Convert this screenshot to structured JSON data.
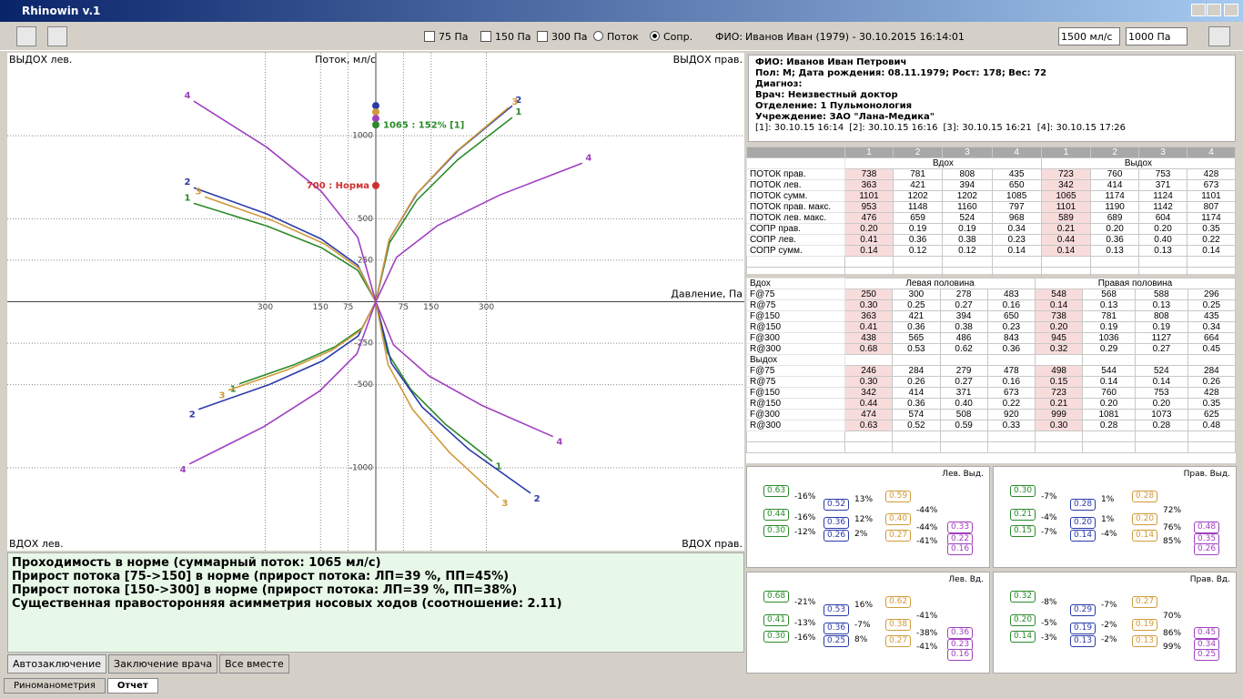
{
  "window": {
    "title": "Rhinowin v.1"
  },
  "toolbar": {
    "checkboxes": [
      "75 Па",
      "150 Па",
      "300 Па"
    ],
    "radios": [
      "Поток",
      "Сопр."
    ],
    "patient_label": "ФИО:",
    "patient": "Иванов Иван (1979) - 30.10.2015 16:14:01",
    "flow_range": "1500 мл/с",
    "pressure_range": "1000 Па"
  },
  "chart_data": {
    "type": "line",
    "x_label": "Давление, Па",
    "y_label": "Поток, мл/с",
    "quadrant_labels": [
      "ВЫДОХ лев.",
      "ВЫДОХ прав.",
      "ВДОХ лев.",
      "ВДОХ прав."
    ],
    "xlim": [
      -1000,
      1000
    ],
    "ylim": [
      -1500,
      1500
    ],
    "xticks": [
      {
        "value": -300,
        "label": "300"
      },
      {
        "value": -150,
        "label": "150"
      },
      {
        "value": -75,
        "label": "75"
      },
      75,
      150,
      300
    ],
    "yticks": [
      1000,
      500,
      250,
      -250,
      -500,
      -1000
    ],
    "grid": true,
    "series": [
      {
        "name": "1",
        "color": "#2a8a2a",
        "x": [
          0,
          37,
          111,
          222,
          370,
          null,
          0,
          -49,
          -148,
          -296,
          -494,
          null,
          0,
          -37,
          -111,
          -222,
          -370,
          null,
          0,
          32,
          95,
          190,
          316
        ],
        "y": [
          0,
          355,
          611,
          855,
          1110,
          null,
          0,
          190,
          326,
          457,
          593,
          null,
          0,
          -158,
          -272,
          -380,
          -494,
          null,
          0,
          -308,
          -529,
          -740,
          -961
        ]
      },
      {
        "name": "2",
        "color": "#2a3aa8",
        "x": [
          0,
          37,
          111,
          222,
          370,
          null,
          0,
          -49,
          -148,
          -296,
          -494,
          null,
          0,
          -48,
          -144,
          -289,
          -481,
          null,
          0,
          42,
          126,
          252,
          420
        ],
        "y": [
          0,
          378,
          650,
          909,
          1181,
          null,
          0,
          220,
          378,
          529,
          687,
          null,
          0,
          -207,
          -356,
          -499,
          -648,
          null,
          0,
          -369,
          -635,
          -889,
          -1154
        ]
      },
      {
        "name": "3",
        "color": "#d09a3a",
        "x": [
          0,
          36,
          108,
          216,
          360,
          null,
          0,
          -46,
          -139,
          -278,
          -464,
          null,
          0,
          -40,
          -120,
          -240,
          -400,
          null,
          0,
          33,
          100,
          200,
          333
        ],
        "y": [
          0,
          374,
          644,
          901,
          1170,
          null,
          0,
          202,
          348,
          487,
          632,
          null,
          0,
          -171,
          -293,
          -410,
          -533,
          null,
          0,
          -378,
          -650,
          -909,
          -1181
        ]
      },
      {
        "name": "4",
        "color": "#a040c0",
        "x": [
          0,
          56,
          168,
          336,
          560,
          null,
          0,
          -49,
          -148,
          -296,
          -494,
          null,
          0,
          -51,
          -152,
          -304,
          -506,
          null,
          0,
          48,
          144,
          289,
          481
        ],
        "y": [
          0,
          267,
          459,
          643,
          835,
          null,
          0,
          387,
          665,
          931,
          1209,
          null,
          0,
          -313,
          -538,
          -753,
          -978,
          null,
          0,
          -260,
          -447,
          -626,
          -813
        ]
      }
    ],
    "markers": [
      {
        "y": 1181,
        "color": "#2a3aa8"
      },
      {
        "y": 1143,
        "color": "#d09a3a"
      },
      {
        "y": 1104,
        "color": "#a040c0"
      },
      {
        "y": 1066,
        "color": "#2a8a2a"
      },
      {
        "y": 700,
        "color": "#d03030"
      }
    ],
    "annotations": [
      {
        "text": "1065 : 152% [1]",
        "y": 1065,
        "color": "#2a8a2a"
      },
      {
        "text": "700 : Норма",
        "y": 700,
        "color": "#d03030"
      }
    ]
  },
  "info": {
    "lines": [
      "ФИО: Иванов Иван Петрович",
      "Пол: М; Дата рождения: 08.11.1979; Рост: 178; Вес: 72",
      "Диагноз:",
      "Врач: Неизвестный доктор",
      "Отделение: 1 Пульмонология",
      "Учреждение: ЗАО \"Лана-Медика\""
    ],
    "sessions": [
      "[1]: 30.10.15 16:14",
      "[2]: 30.10.15 16:16",
      "[3]: 30.10.15 16:21",
      "[4]: 30.10.15 17:26"
    ]
  },
  "flow_table": {
    "headers": [
      "1",
      "2",
      "3",
      "4",
      "1",
      "2",
      "3",
      "4"
    ],
    "groups": [
      "Вдох",
      "Выдох"
    ],
    "rows": [
      {
        "label": "ПОТОК прав.",
        "cells": [
          "738",
          "781",
          "808",
          "435",
          "723",
          "760",
          "753",
          "428"
        ]
      },
      {
        "label": "ПОТОК лев.",
        "cells": [
          "363",
          "421",
          "394",
          "650",
          "342",
          "414",
          "371",
          "673"
        ]
      },
      {
        "label": "ПОТОК сумм.",
        "cells": [
          "1101",
          "1202",
          "1202",
          "1085",
          "1065",
          "1174",
          "1124",
          "1101"
        ]
      },
      {
        "label": "ПОТОК прав. макс.",
        "cells": [
          "953",
          "1148",
          "1160",
          "797",
          "1101",
          "1190",
          "1142",
          "807"
        ]
      },
      {
        "label": "ПОТОК лев. макс.",
        "cells": [
          "476",
          "659",
          "524",
          "968",
          "589",
          "689",
          "604",
          "1174"
        ]
      },
      {
        "label": "СОПР прав.",
        "cells": [
          "0.20",
          "0.19",
          "0.19",
          "0.34",
          "0.21",
          "0.20",
          "0.20",
          "0.35"
        ]
      },
      {
        "label": "СОПР лев.",
        "cells": [
          "0.41",
          "0.36",
          "0.38",
          "0.23",
          "0.44",
          "0.36",
          "0.40",
          "0.22"
        ]
      },
      {
        "label": "СОПР сумм.",
        "cells": [
          "0.14",
          "0.12",
          "0.12",
          "0.14",
          "0.14",
          "0.13",
          "0.13",
          "0.14"
        ]
      }
    ]
  },
  "param_table": {
    "inhale_label": "Вдох",
    "halves": [
      "Левая половина",
      "Правая половина"
    ],
    "inhale": [
      {
        "label": "F@75",
        "cells": [
          "250",
          "300",
          "278",
          "483",
          "548",
          "568",
          "588",
          "296"
        ]
      },
      {
        "label": "R@75",
        "cells": [
          "0.30",
          "0.25",
          "0.27",
          "0.16",
          "0.14",
          "0.13",
          "0.13",
          "0.25"
        ]
      },
      {
        "label": "F@150",
        "cells": [
          "363",
          "421",
          "394",
          "650",
          "738",
          "781",
          "808",
          "435"
        ]
      },
      {
        "label": "R@150",
        "cells": [
          "0.41",
          "0.36",
          "0.38",
          "0.23",
          "0.20",
          "0.19",
          "0.19",
          "0.34"
        ]
      },
      {
        "label": "F@300",
        "cells": [
          "438",
          "565",
          "486",
          "843",
          "945",
          "1036",
          "1127",
          "664"
        ]
      },
      {
        "label": "R@300",
        "cells": [
          "0.68",
          "0.53",
          "0.62",
          "0.36",
          "0.32",
          "0.29",
          "0.27",
          "0.45"
        ]
      }
    ],
    "exhale_label": "Выдох",
    "exhale": [
      {
        "label": "F@75",
        "cells": [
          "246",
          "284",
          "279",
          "478",
          "498",
          "544",
          "524",
          "284"
        ]
      },
      {
        "label": "R@75",
        "cells": [
          "0.30",
          "0.26",
          "0.27",
          "0.16",
          "0.15",
          "0.14",
          "0.14",
          "0.26"
        ]
      },
      {
        "label": "F@150",
        "cells": [
          "342",
          "414",
          "371",
          "673",
          "723",
          "760",
          "753",
          "428"
        ]
      },
      {
        "label": "R@150",
        "cells": [
          "0.44",
          "0.36",
          "0.40",
          "0.22",
          "0.21",
          "0.20",
          "0.20",
          "0.35"
        ]
      },
      {
        "label": "F@300",
        "cells": [
          "474",
          "574",
          "508",
          "920",
          "999",
          "1081",
          "1073",
          "625"
        ]
      },
      {
        "label": "R@300",
        "cells": [
          "0.63",
          "0.52",
          "0.59",
          "0.33",
          "0.30",
          "0.28",
          "0.28",
          "0.48"
        ]
      }
    ]
  },
  "diagrams": [
    {
      "title": "Лев. Выд.",
      "rows": [
        {
          "values": [
            "0.63",
            "0.52",
            "0.59",
            "0.33"
          ],
          "changes": [
            "-16%",
            "13%",
            "-44%"
          ]
        },
        {
          "values": [
            "0.44",
            "0.36",
            "0.40",
            "0.22"
          ],
          "changes": [
            "-16%",
            "12%",
            "-44%"
          ]
        },
        {
          "values": [
            "0.30",
            "0.26",
            "0.27",
            "0.16"
          ],
          "changes": [
            "-12%",
            "2%",
            "-41%"
          ]
        }
      ]
    },
    {
      "title": "Прав. Выд.",
      "rows": [
        {
          "values": [
            "0.30",
            "0.28",
            "0.28",
            "0.48"
          ],
          "changes": [
            "-7%",
            "1%",
            "72%"
          ]
        },
        {
          "values": [
            "0.21",
            "0.20",
            "0.20",
            "0.35"
          ],
          "changes": [
            "-4%",
            "1%",
            "76%"
          ]
        },
        {
          "values": [
            "0.15",
            "0.14",
            "0.14",
            "0.26"
          ],
          "changes": [
            "-7%",
            "-4%",
            "85%"
          ]
        }
      ]
    },
    {
      "title": "Лев. Вд.",
      "rows": [
        {
          "values": [
            "0.68",
            "0.53",
            "0.62",
            "0.36"
          ],
          "changes": [
            "-21%",
            "16%",
            "-41%"
          ]
        },
        {
          "values": [
            "0.41",
            "0.36",
            "0.38",
            "0.23"
          ],
          "changes": [
            "-13%",
            "-7%",
            "-38%"
          ]
        },
        {
          "values": [
            "0.30",
            "0.25",
            "0.27",
            "0.16"
          ],
          "changes": [
            "-16%",
            "8%",
            "-41%"
          ]
        }
      ]
    },
    {
      "title": "Прав. Вд.",
      "rows": [
        {
          "values": [
            "0.32",
            "0.29",
            "0.27",
            "0.45"
          ],
          "changes": [
            "-8%",
            "-7%",
            "70%"
          ]
        },
        {
          "values": [
            "0.20",
            "0.19",
            "0.19",
            "0.34"
          ],
          "changes": [
            "-5%",
            "-2%",
            "86%"
          ]
        },
        {
          "values": [
            "0.14",
            "0.13",
            "0.13",
            "0.25"
          ],
          "changes": [
            "-3%",
            "-2%",
            "99%"
          ]
        }
      ]
    }
  ],
  "conclusion": {
    "lines": [
      "Проходимость в норме (суммарный поток: 1065 мл/с)",
      "Прирост потока [75->150] в норме (прирост потока: ЛП=39 %, ПП=45%)",
      "Прирост потока [150->300] в норме (прирост потока: ЛП=39 %, ПП=38%)",
      "Существенная правосторонняя асимметрия носовых ходов (соотношение: 2.11)"
    ]
  },
  "conclusion_tabs": [
    "Автозаключение",
    "Заключение врача",
    "Все вместе"
  ],
  "tabs": [
    "Риноманометрия",
    "Отчет"
  ]
}
